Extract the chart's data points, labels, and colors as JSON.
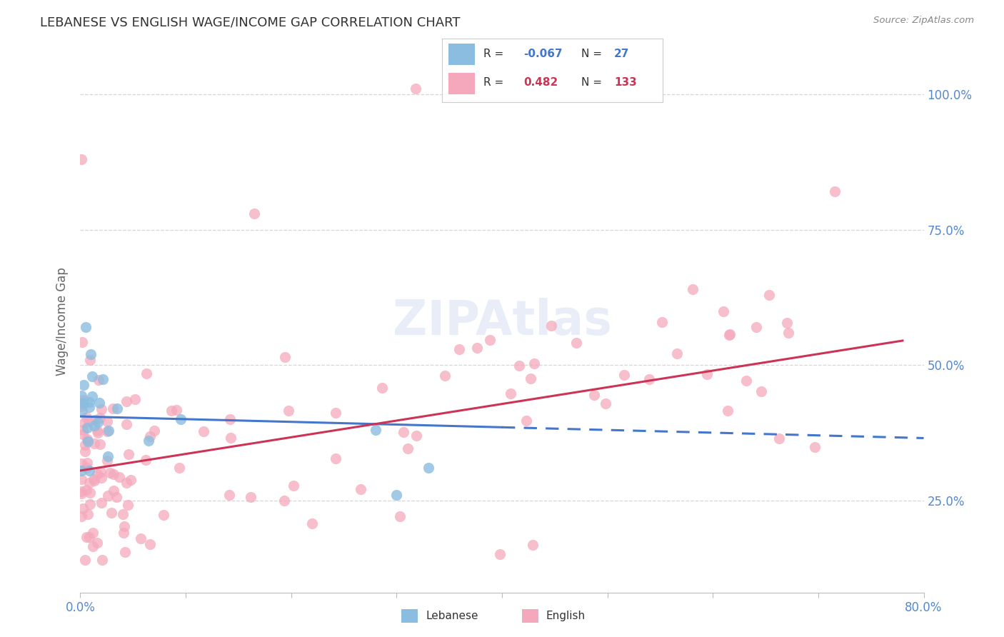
{
  "title": "LEBANESE VS ENGLISH WAGE/INCOME GAP CORRELATION CHART",
  "source": "Source: ZipAtlas.com",
  "ylabel": "Wage/Income Gap",
  "y_ticks": [
    0.25,
    0.5,
    0.75,
    1.0
  ],
  "y_tick_labels": [
    "25.0%",
    "50.0%",
    "75.0%",
    "100.0%"
  ],
  "x_ticks": [
    0.0,
    0.1,
    0.2,
    0.3,
    0.4,
    0.5,
    0.6,
    0.7,
    0.8
  ],
  "x_tick_labels": [
    "0.0%",
    "",
    "",
    "",
    "",
    "",
    "",
    "",
    "80.0%"
  ],
  "x_range": [
    0.0,
    0.8
  ],
  "y_range": [
    0.08,
    1.08
  ],
  "lebanese_R": -0.067,
  "lebanese_N": 27,
  "english_R": 0.482,
  "english_N": 133,
  "lebanese_color": "#8bbde0",
  "english_color": "#f5a8bc",
  "lebanese_line_color": "#4477cc",
  "english_line_color": "#cc3355",
  "background_color": "#ffffff",
  "grid_color": "#cccccc",
  "title_color": "#333333",
  "axis_label_color": "#5588cc",
  "watermark": "ZIPAtlas",
  "leb_trend_solid_end": 0.4,
  "leb_trend_start_y": 0.405,
  "leb_trend_end_y": 0.365,
  "eng_trend_start_x": 0.0,
  "eng_trend_end_x": 0.78,
  "eng_trend_start_y": 0.305,
  "eng_trend_end_y": 0.545
}
